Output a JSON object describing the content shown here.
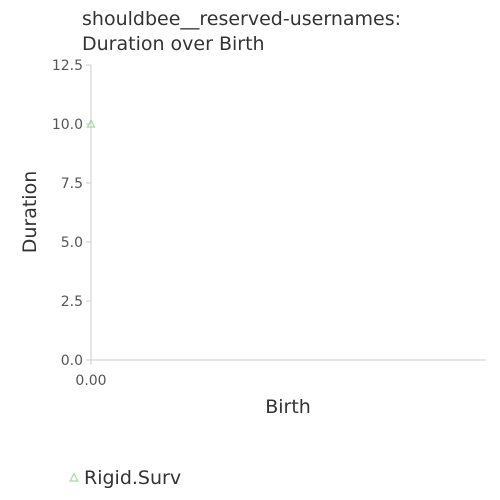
{
  "chart_data": {
    "type": "scatter",
    "title": [
      "shouldbee__reserved-usernames:",
      "Duration over Birth"
    ],
    "xlabel": "Birth",
    "ylabel": "Duration",
    "xlim": [
      0,
      1
    ],
    "ylim": [
      0,
      12.5
    ],
    "x_ticks": [
      "0.00"
    ],
    "y_ticks": [
      "0.0",
      "2.5",
      "5.0",
      "7.5",
      "10.0",
      "12.5"
    ],
    "series": [
      {
        "name": "Rigid.Surv",
        "marker": "triangle",
        "color": "#a8d8a8",
        "points": [
          {
            "x": 0.0,
            "y": 10.0
          }
        ]
      }
    ],
    "legend_position": "bottom-left"
  }
}
